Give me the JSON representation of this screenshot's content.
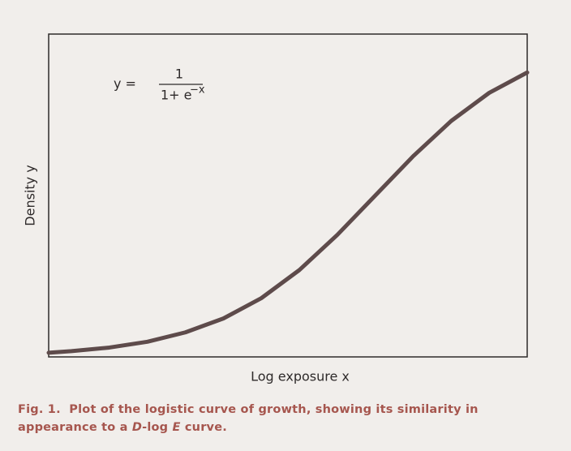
{
  "chart_data": {
    "type": "line",
    "y_label": "Density   y",
    "x_label": "Log exposure   x",
    "formula": {
      "lhs": "y =",
      "numerator": "1",
      "denominator": "1+ e",
      "exponent": "−x"
    },
    "x": [
      -4.3,
      -4,
      -3.5,
      -3,
      -2.5,
      -2,
      -1.5,
      -1,
      -0.5,
      0,
      0.5,
      1,
      1.5,
      2
    ],
    "series": [
      {
        "color": "#5e4b4b",
        "values": [
          0.013,
          0.018,
          0.029,
          0.047,
          0.076,
          0.119,
          0.182,
          0.269,
          0.378,
          0.5,
          0.622,
          0.731,
          0.818,
          0.881
        ]
      }
    ],
    "xlim": [
      -4.3,
      2
    ],
    "ylim": [
      0,
      1
    ]
  },
  "caption": [
    "Fig. 1.  Plot of the logistic curve of growth, showing its similarity in appearance to a ",
    "D",
    "-log ",
    "E",
    " curve."
  ]
}
